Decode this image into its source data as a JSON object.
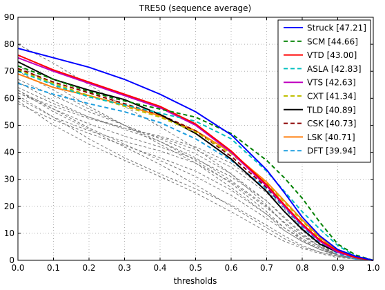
{
  "chart_data": {
    "type": "line",
    "title": "TRE50 (sequence average)",
    "xlabel": "thresholds",
    "ylabel": "",
    "xlim": [
      0,
      1
    ],
    "ylim": [
      0,
      90
    ],
    "x_ticks": [
      "0.0",
      "0.1",
      "0.2",
      "0.3",
      "0.4",
      "0.5",
      "0.6",
      "0.7",
      "0.8",
      "0.9",
      "1.0"
    ],
    "y_ticks": [
      "0",
      "10",
      "20",
      "30",
      "40",
      "50",
      "60",
      "70",
      "80",
      "90"
    ],
    "grid": true,
    "legend_position": "top-right",
    "x": [
      0,
      0.1,
      0.2,
      0.3,
      0.4,
      0.5,
      0.6,
      0.7,
      0.75,
      0.8,
      0.85,
      0.9,
      0.95,
      1.0
    ],
    "series": [
      {
        "name": "Struck [47.21]",
        "color": "#0000ff",
        "dash": "solid",
        "values": [
          78.5,
          75,
          71.5,
          67,
          61.5,
          55,
          46.5,
          33.5,
          25,
          16,
          9,
          4,
          1.5,
          0
        ]
      },
      {
        "name": "SCM [44.66]",
        "color": "#008000",
        "dash": "dashed",
        "values": [
          72,
          67,
          62.5,
          59,
          56,
          53,
          47,
          37,
          30.5,
          23,
          14,
          6,
          2,
          0
        ]
      },
      {
        "name": "VTD [43.00]",
        "color": "#ff0000",
        "dash": "solid",
        "values": [
          76,
          70.5,
          66,
          61.5,
          57,
          50.5,
          40.5,
          28,
          20.5,
          13.5,
          7.5,
          3.5,
          1,
          0
        ]
      },
      {
        "name": "ASLA [42.83]",
        "color": "#00bfbf",
        "dash": "dashed",
        "values": [
          70,
          65,
          60.5,
          57.5,
          54.5,
          51.5,
          45,
          33,
          25.5,
          18,
          11.5,
          5.5,
          1.5,
          0
        ]
      },
      {
        "name": "VTS [42.63]",
        "color": "#bf00bf",
        "dash": "solid",
        "values": [
          75,
          70,
          65.5,
          61,
          56.5,
          50,
          40,
          27.5,
          20,
          13,
          7,
          3,
          1,
          0
        ]
      },
      {
        "name": "CXT [41.34]",
        "color": "#bfbf00",
        "dash": "dashed",
        "values": [
          70.5,
          65.5,
          61,
          57,
          53,
          47.5,
          39.5,
          28.5,
          21.5,
          14.5,
          8,
          3.5,
          1,
          0
        ]
      },
      {
        "name": "TLD [40.89]",
        "color": "#000000",
        "dash": "solid",
        "values": [
          73.5,
          67,
          63,
          59.5,
          54,
          47,
          37.5,
          25.5,
          18,
          11.5,
          6,
          3,
          1,
          0
        ]
      },
      {
        "name": "CSK [40.73]",
        "color": "#8b0000",
        "dash": "dashed",
        "values": [
          71,
          66,
          62,
          58,
          54,
          48,
          38.5,
          27,
          20,
          13,
          7,
          3,
          1,
          0
        ]
      },
      {
        "name": "LSK [40.71]",
        "color": "#ff7f0e",
        "dash": "solid",
        "values": [
          69,
          64,
          61,
          57.5,
          53.5,
          48,
          40,
          29,
          22,
          15,
          8.5,
          3.5,
          1,
          0
        ]
      },
      {
        "name": "DFT [39.94]",
        "color": "#1f9fe0",
        "dash": "dashed",
        "values": [
          65.5,
          61.5,
          58,
          55,
          51,
          45,
          37,
          26.5,
          19.5,
          12.5,
          6.5,
          2.5,
          0.5,
          0
        ]
      }
    ],
    "background_series": [
      {
        "color": "#777777",
        "dash": "dashed",
        "values": [
          80,
          73,
          65,
          57,
          49.5,
          41.5,
          32,
          20.5,
          13.5,
          8,
          4.5,
          2,
          0.5,
          0
        ]
      },
      {
        "color": "#777777",
        "dash": "dashed",
        "values": [
          72,
          65,
          57,
          50,
          43,
          36,
          27,
          17,
          11,
          7,
          4,
          2,
          0.5,
          0
        ]
      },
      {
        "color": "#777777",
        "dash": "dashed",
        "values": [
          66,
          59,
          53,
          49,
          46,
          42,
          36,
          26,
          19,
          12,
          6,
          2,
          0.5,
          0
        ]
      },
      {
        "color": "#777777",
        "dash": "dashed",
        "values": [
          64,
          58,
          53,
          48.5,
          44,
          38,
          29.5,
          20,
          14,
          9,
          5,
          2,
          0.5,
          0
        ]
      },
      {
        "color": "#777777",
        "dash": "dashed",
        "values": [
          63,
          56,
          49,
          43,
          37,
          31,
          24,
          15.5,
          11,
          7,
          4,
          2,
          0.5,
          0
        ]
      },
      {
        "color": "#777777",
        "dash": "dashed",
        "values": [
          62,
          57,
          52.5,
          49,
          45.5,
          41,
          34.5,
          25,
          18,
          11,
          5.5,
          2,
          0.5,
          0
        ]
      },
      {
        "color": "#777777",
        "dash": "dashed",
        "values": [
          61,
          53,
          45,
          38,
          32,
          26.5,
          20.5,
          13,
          9,
          5.5,
          3,
          1.5,
          0.5,
          0
        ]
      },
      {
        "color": "#777777",
        "dash": "dashed",
        "values": [
          60,
          53,
          48,
          44,
          40.5,
          36,
          29,
          19.5,
          14,
          9,
          5,
          2,
          0.5,
          0
        ]
      },
      {
        "color": "#777777",
        "dash": "dashed",
        "values": [
          59,
          50,
          43,
          37,
          31,
          25,
          18,
          10.5,
          7,
          4.5,
          2.5,
          1,
          0.5,
          0
        ]
      },
      {
        "color": "#777777",
        "dash": "dashed",
        "values": [
          58,
          52,
          47,
          42.5,
          38,
          33,
          26,
          17,
          12,
          8,
          4.5,
          2,
          0.5,
          0
        ]
      },
      {
        "color": "#777777",
        "dash": "dashed",
        "values": [
          63,
          55,
          48.5,
          42,
          35.5,
          28,
          20,
          12,
          8,
          5,
          3,
          1.5,
          0.5,
          0
        ]
      },
      {
        "color": "#777777",
        "dash": "dashed",
        "values": [
          62,
          56,
          50.5,
          46,
          42,
          37.5,
          31,
          22,
          16,
          10,
          5,
          2,
          0.5,
          0
        ]
      },
      {
        "color": "#777777",
        "dash": "dashed",
        "values": [
          67,
          61,
          55,
          50,
          45,
          39.5,
          32,
          22,
          15.5,
          9.5,
          5,
          2,
          0.5,
          0
        ]
      },
      {
        "color": "#777777",
        "dash": "dashed",
        "values": [
          70,
          63,
          56,
          50,
          44,
          37,
          28.5,
          18,
          12,
          7.5,
          4,
          1.5,
          0.5,
          0
        ]
      }
    ]
  }
}
